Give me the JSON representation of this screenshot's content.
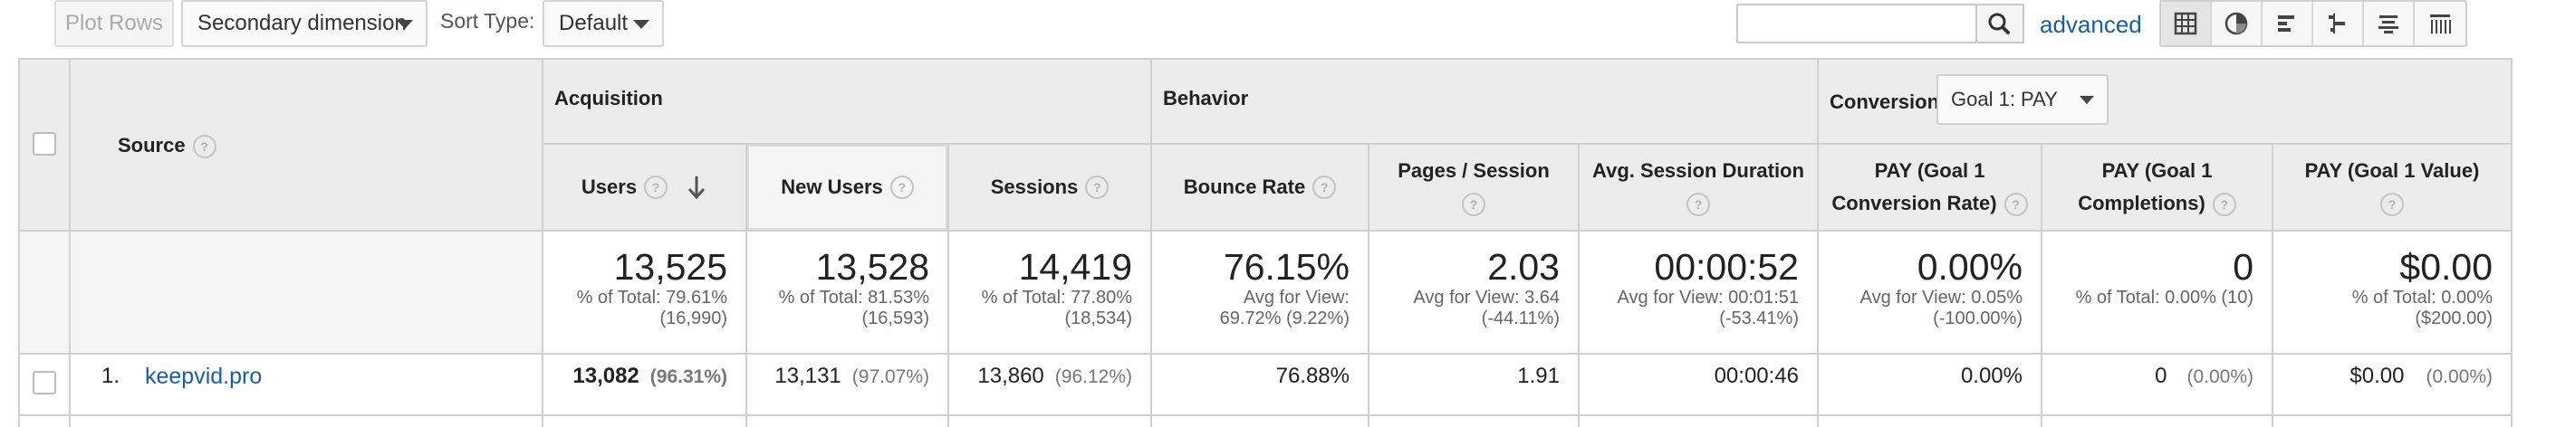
{
  "toolbar": {
    "plot_rows": "Plot Rows",
    "secondary_dimension": "Secondary dimension",
    "sort_type_label": "Sort Type:",
    "sort_type_value": "Default",
    "search_value": "",
    "advanced": "advanced",
    "view_icons": [
      "table-view-icon",
      "pie-view-icon",
      "performance-view-icon",
      "comparison-view-icon",
      "term-cloud-view-icon",
      "pivot-view-icon"
    ]
  },
  "table": {
    "dimension_header": "Source",
    "groups": {
      "acquisition": "Acquisition",
      "behavior": "Behavior",
      "conversions": "Conversions",
      "goal_select": "Goal 1: PAY"
    },
    "columns": [
      {
        "label": "Users",
        "sorted": "desc"
      },
      {
        "label": "New Users"
      },
      {
        "label": "Sessions"
      },
      {
        "label": "Bounce Rate"
      },
      {
        "label": "Pages / Session"
      },
      {
        "label": "Avg. Session Duration"
      },
      {
        "label": "PAY (Goal 1 Conversion Rate)"
      },
      {
        "label": "PAY (Goal 1 Completions)"
      },
      {
        "label": "PAY (Goal 1 Value)"
      }
    ],
    "totals": [
      {
        "value": "13,525",
        "line1": "% of Total: 79.61%",
        "line2": "(16,990)"
      },
      {
        "value": "13,528",
        "line1": "% of Total: 81.53%",
        "line2": "(16,593)"
      },
      {
        "value": "14,419",
        "line1": "% of Total: 77.80%",
        "line2": "(18,534)"
      },
      {
        "value": "76.15%",
        "line1": "Avg for View:",
        "line2": "69.72% (9.22%)"
      },
      {
        "value": "2.03",
        "line1": "Avg for View: 3.64",
        "line2": "(-44.11%)"
      },
      {
        "value": "00:00:52",
        "line1": "Avg for View: 00:01:51",
        "line2": "(-53.41%)"
      },
      {
        "value": "0.00%",
        "line1": "Avg for View: 0.05%",
        "line2": "(-100.00%)"
      },
      {
        "value": "0",
        "line1": "% of Total: 0.00% (10)",
        "line2": ""
      },
      {
        "value": "$0.00",
        "line1": "% of Total: 0.00%",
        "line2": "($200.00)"
      }
    ],
    "rows": [
      {
        "index": "1.",
        "source": "keepvid.pro",
        "cells": [
          {
            "value": "13,082",
            "pct": "(96.31%)"
          },
          {
            "value": "13,131",
            "pct": "(97.07%)"
          },
          {
            "value": "13,860",
            "pct": "(96.12%)"
          },
          {
            "value": "76.88%",
            "pct": ""
          },
          {
            "value": "1.91",
            "pct": ""
          },
          {
            "value": "00:00:46",
            "pct": ""
          },
          {
            "value": "0.00%",
            "pct": ""
          },
          {
            "value": "0",
            "pct": "(0.00%)"
          },
          {
            "value": "$0.00",
            "pct": "(0.00%)"
          }
        ]
      }
    ]
  },
  "colors": {
    "link": "#1a5ea8",
    "header_bg": "#ececec",
    "border": "#d0d0d0"
  }
}
